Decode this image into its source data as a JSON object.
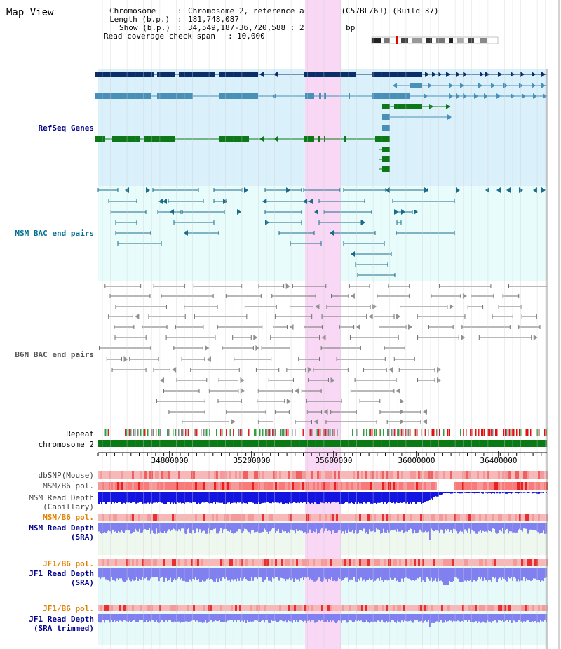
{
  "page_title": "Map View",
  "info": {
    "chromosome_label": "Chromosome",
    "chromosome_value": "Chromosome 2, reference assembly (C57BL/6J) (Build 37)",
    "length_label": "Length (b.p.)",
    "length_value": "181,748,087",
    "show_label": "Show (b.p.)",
    "show_value": "34,549,187-36,720,588 : 2,171,402 bp",
    "coverage_label": "Read coverage check span",
    "coverage_value": "10,000"
  },
  "tracks": {
    "refseq": "RefSeq Genes",
    "msm_bac": "MSM BAC end pairs",
    "b6n_bac": "B6N BAC end pairs",
    "repeat": "Repeat",
    "chromosome": "chromosome 2",
    "dbsnp": "dbSNP(Mouse)",
    "msm_b6_pol_1": "MSM/B6 pol.",
    "msm_read_depth_cap_1": "MSM Read Depth",
    "msm_read_depth_cap_2": "(Capillary)",
    "msm_b6_pol_2": "MSM/B6 pol.",
    "msm_read_depth_sra_1": "MSM Read Depth",
    "msm_read_depth_sra_2": "(SRA)",
    "jf1_b6_pol_1": "JF1/B6 pol.",
    "jf1_read_depth_sra_1": "JF1 Read Depth",
    "jf1_read_depth_sra_2": "(SRA)",
    "jf1_b6_pol_2": "JF1/B6 pol.",
    "jf1_read_depth_trim_1": "JF1 Read Depth",
    "jf1_read_depth_trim_2": "(SRA trimmed)"
  },
  "axis_ticks": [
    "34800000",
    "35200000",
    "35600000",
    "36000000",
    "36400000"
  ],
  "colors": {
    "refseq_bg": "#daf0fa",
    "msm_bg": "#e8fcfc",
    "highlight": "#f8d8f4",
    "refseq_dark": "#0a2e6a",
    "refseq_mid": "#4890b8",
    "refseq_green": "#0c7818",
    "msm_line": "#1c6a8a",
    "b6n_line": "#707070",
    "chrom_green": "#0a7a14",
    "snp_pink": "#f8b8b8",
    "depth_blue": "#1414e0",
    "sra_blue": "#8080f0",
    "label_navy": "#00008b",
    "label_teal": "#007090",
    "label_orange": "#e08000"
  }
}
